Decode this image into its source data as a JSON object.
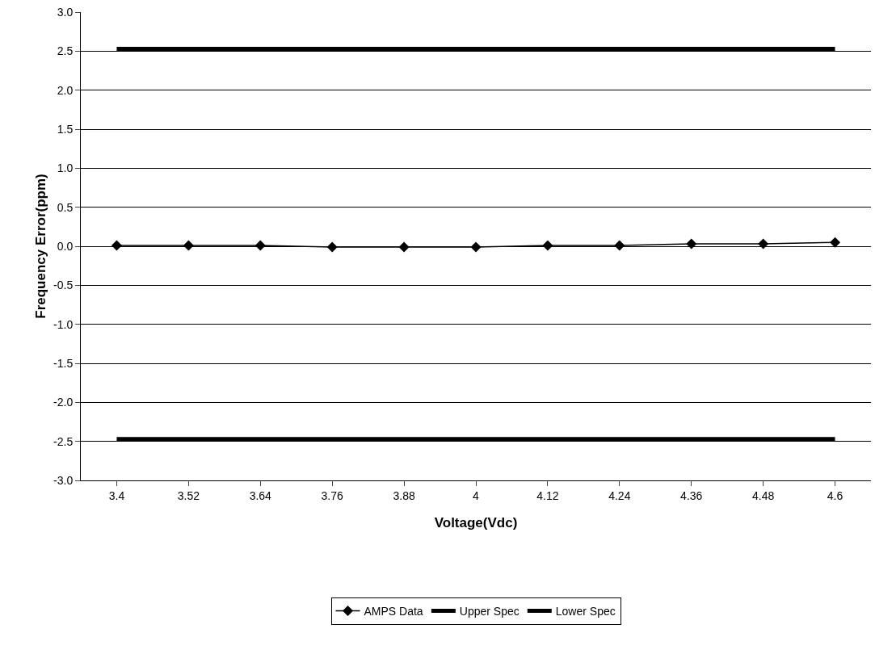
{
  "chart_data": {
    "type": "line",
    "xlabel": "Voltage(Vdc)",
    "ylabel": "Frequency Error(ppm)",
    "categories": [
      "3.4",
      "3.52",
      "3.64",
      "3.76",
      "3.88",
      "4",
      "4.12",
      "4.24",
      "4.36",
      "4.48",
      "4.6"
    ],
    "series": [
      {
        "name": "AMPS Data",
        "color": "#000000",
        "marker": "diamond",
        "values": [
          0.01,
          0.01,
          0.01,
          -0.01,
          -0.01,
          -0.01,
          0.01,
          0.01,
          0.03,
          0.03,
          0.05
        ]
      },
      {
        "name": "Upper Spec",
        "color": "#000000",
        "marker": "none",
        "values": [
          2.53,
          2.53,
          2.53,
          2.53,
          2.53,
          2.53,
          2.53,
          2.53,
          2.53,
          2.53,
          2.53
        ]
      },
      {
        "name": "Lower Spec",
        "color": "#000000",
        "marker": "none",
        "values": [
          -2.47,
          -2.47,
          -2.47,
          -2.47,
          -2.47,
          -2.47,
          -2.47,
          -2.47,
          -2.47,
          -2.47,
          -2.47
        ]
      }
    ],
    "ylim": [
      -3,
      3
    ],
    "yticks": [
      {
        "value": -3,
        "label": "-3.0"
      },
      {
        "value": -2.5,
        "label": "-2.5"
      },
      {
        "value": -2,
        "label": "-2.0"
      },
      {
        "value": -1.5,
        "label": "-1.5"
      },
      {
        "value": -1,
        "label": "-1.0"
      },
      {
        "value": -0.5,
        "label": "-0.5"
      },
      {
        "value": 0,
        "label": "0.0"
      },
      {
        "value": 0.5,
        "label": "0.5"
      },
      {
        "value": 1,
        "label": "1.0"
      },
      {
        "value": 1.5,
        "label": "1.5"
      },
      {
        "value": 2,
        "label": "2.0"
      },
      {
        "value": 2.5,
        "label": "2.5"
      },
      {
        "value": 3,
        "label": "3.0"
      }
    ],
    "grid": "y",
    "legend": "bottom"
  }
}
